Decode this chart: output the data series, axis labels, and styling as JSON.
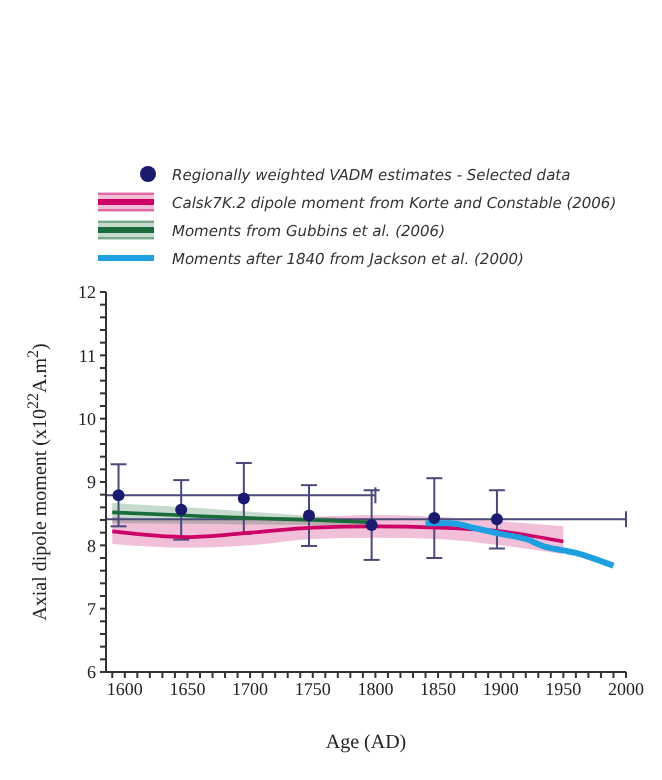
{
  "chart_data": {
    "type": "line",
    "xlabel": "Age (AD)",
    "ylabel": "Axial dipole moment (x10$^{22}$A.m$^{2}$)",
    "xlim": [
      1585,
      2000
    ],
    "ylim": [
      6,
      12
    ],
    "xticks": [
      1600,
      1650,
      1700,
      1750,
      1800,
      1850,
      1900,
      1950,
      2000,
      {
        "value": 1590,
        "label": null
      },
      {
        "value": 1610,
        "label": null
      },
      {
        "value": 1620,
        "label": null
      },
      {
        "value": 1630,
        "label": null
      },
      {
        "value": 1640,
        "label": null
      },
      {
        "value": 1660,
        "label": null
      },
      {
        "value": 1670,
        "label": null
      },
      {
        "value": 1680,
        "label": null
      },
      {
        "value": 1690,
        "label": null
      },
      {
        "value": 1710,
        "label": null
      },
      {
        "value": 1720,
        "label": null
      },
      {
        "value": 1730,
        "label": null
      },
      {
        "value": 1740,
        "label": null
      },
      {
        "value": 1760,
        "label": null
      },
      {
        "value": 1770,
        "label": null
      },
      {
        "value": 1780,
        "label": null
      },
      {
        "value": 1790,
        "label": null
      },
      {
        "value": 1810,
        "label": null
      },
      {
        "value": 1820,
        "label": null
      },
      {
        "value": 1830,
        "label": null
      },
      {
        "value": 1840,
        "label": null
      },
      {
        "value": 1860,
        "label": null
      },
      {
        "value": 1870,
        "label": null
      },
      {
        "value": 1880,
        "label": null
      },
      {
        "value": 1890,
        "label": null
      },
      {
        "value": 1910,
        "label": null
      },
      {
        "value": 1920,
        "label": null
      },
      {
        "value": 1930,
        "label": null
      },
      {
        "value": 1940,
        "label": null
      },
      {
        "value": 1960,
        "label": null
      },
      {
        "value": 1970,
        "label": null
      },
      {
        "value": 1980,
        "label": null
      },
      {
        "value": 1990,
        "label": null
      }
    ],
    "yticks": [
      6,
      7,
      8,
      9,
      10,
      11,
      12,
      {
        "value": 6.2,
        "label": null
      },
      {
        "value": 6.4,
        "label": null
      },
      {
        "value": 6.6,
        "label": null
      },
      {
        "value": 6.8,
        "label": null
      },
      {
        "value": 7.2,
        "label": null
      },
      {
        "value": 7.4,
        "label": null
      },
      {
        "value": 7.6,
        "label": null
      },
      {
        "value": 7.8,
        "label": null
      },
      {
        "value": 8.2,
        "label": null
      },
      {
        "value": 8.4,
        "label": null
      },
      {
        "value": 8.6,
        "label": null
      },
      {
        "value": 8.8,
        "label": null
      },
      {
        "value": 9.2,
        "label": null
      },
      {
        "value": 9.4,
        "label": null
      },
      {
        "value": 9.6,
        "label": null
      },
      {
        "value": 9.8,
        "label": null
      },
      {
        "value": 10.2,
        "label": null
      },
      {
        "value": 10.4,
        "label": null
      },
      {
        "value": 10.6,
        "label": null
      },
      {
        "value": 10.8,
        "label": null
      },
      {
        "value": 11.2,
        "label": null
      },
      {
        "value": 11.4,
        "label": null
      },
      {
        "value": 11.6,
        "label": null
      },
      {
        "value": 11.8,
        "label": null
      }
    ],
    "grid": false,
    "legend": "top",
    "marker": "none",
    "line_style": "solid",
    "series": [
      {
        "name": "Regionally weighted VADM estimates - Selected data",
        "type": "scatter",
        "marker": "circle",
        "color": "#1a1a6e",
        "x": [
          1595,
          1645,
          1695,
          1747,
          1797,
          1847,
          1897
        ],
        "values": [
          8.79,
          8.56,
          8.74,
          8.47,
          8.32,
          8.43,
          8.41
        ],
        "errors": [
          0.49,
          0.47,
          0.56,
          0.48,
          0.55,
          0.63,
          0.46
        ],
        "xerrors": [
          [
            1585,
            1800
          ],
          null,
          null,
          null,
          null,
          null,
          [
            1585,
            2000
          ]
        ]
      },
      {
        "name": "Calsk7K.2 dipole moment  from Korte and Constable (2006)",
        "color": "#cc0066",
        "x": [
          1590,
          1650,
          1700,
          1750,
          1800,
          1850,
          1900,
          1950
        ],
        "values": [
          8.22,
          8.13,
          8.2,
          8.28,
          8.3,
          8.28,
          8.22,
          8.06
        ],
        "lower": [
          8.02,
          7.96,
          8.0,
          8.1,
          8.12,
          8.1,
          8.0,
          7.86
        ],
        "upper": [
          8.45,
          8.4,
          8.42,
          8.45,
          8.48,
          8.45,
          8.38,
          8.3
        ]
      },
      {
        "name": "Moments from Gubbins et al. (2006)",
        "color": "#1a6b3a",
        "x": [
          1590,
          1650,
          1700,
          1750,
          1800
        ],
        "values": [
          8.52,
          8.47,
          8.43,
          8.4,
          8.36
        ],
        "lower": [
          8.35,
          8.34,
          8.33,
          8.32,
          8.3
        ],
        "upper": [
          8.67,
          8.6,
          8.53,
          8.46,
          8.4
        ]
      },
      {
        "name": "Moments after 1840 from Jackson et al. (2000)",
        "color": "#1ea0e0",
        "x": [
          1840,
          1860,
          1880,
          1900,
          1920,
          1935,
          1950,
          1960,
          1980,
          1990
        ],
        "values": [
          8.35,
          8.35,
          8.27,
          8.18,
          8.1,
          7.98,
          7.92,
          7.88,
          7.75,
          7.68
        ]
      }
    ]
  }
}
